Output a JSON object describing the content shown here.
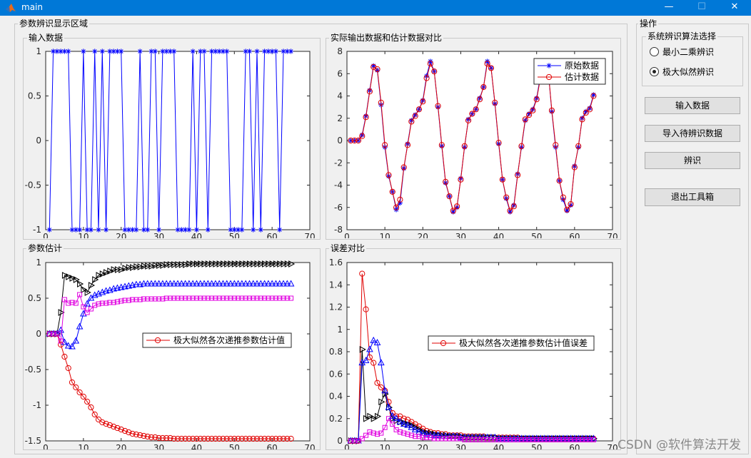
{
  "window": {
    "title": "main",
    "minimize": "—",
    "maximize": "☐",
    "close": "✕"
  },
  "panels": {
    "display_area": "参数辨识显示区域",
    "input": "输入数据",
    "compare": "实际输出数据和估计数据对比",
    "params": "参数估计",
    "error": "误差对比",
    "ops": "操作",
    "algo": "系统辨识算法选择"
  },
  "radios": {
    "lsq": "最小二乘辨识",
    "mle": "极大似然辨识",
    "selected": "mle"
  },
  "buttons": {
    "input_data": "输入数据",
    "import_data": "导入待辨识数据",
    "identify": "辨识",
    "exit": "退出工具箱"
  },
  "watermark": "CSDN @软件算法开发",
  "colors": {
    "blue": "#0000ff",
    "red": "#e00000",
    "black": "#000000",
    "magenta": "#e000e0",
    "accent": "#0078d7"
  },
  "chart_data": [
    {
      "id": "input",
      "type": "line",
      "marker": "star",
      "xlim": [
        0,
        70
      ],
      "ylim": [
        -1,
        1
      ],
      "xticks": [
        0,
        10,
        20,
        30,
        40,
        50,
        60,
        70
      ],
      "yticks": [
        -1,
        -0.5,
        0,
        0.5,
        1
      ],
      "series": [
        {
          "color": "#0000ff",
          "values": [
            -1,
            1,
            1,
            1,
            1,
            1,
            -1,
            -1,
            -1,
            1,
            -1,
            -1,
            1,
            -1,
            1,
            -1,
            1,
            1,
            1,
            1,
            -1,
            -1,
            -1,
            -1,
            1,
            -1,
            -1,
            1,
            1,
            -1,
            1,
            1,
            1,
            1,
            -1,
            -1,
            -1,
            -1,
            1,
            -1,
            1,
            1,
            -1,
            1,
            1,
            1,
            1,
            1,
            -1,
            -1,
            -1,
            -1,
            1,
            1,
            -1,
            1,
            -1,
            1,
            1,
            1,
            1,
            -1,
            1,
            1,
            1
          ]
        }
      ]
    },
    {
      "id": "compare",
      "type": "line",
      "xlim": [
        0,
        70
      ],
      "ylim": [
        -8,
        8
      ],
      "xticks": [
        0,
        10,
        20,
        30,
        40,
        50,
        60,
        70
      ],
      "yticks": [
        -8,
        -6,
        -4,
        -2,
        0,
        2,
        4,
        6,
        8
      ],
      "legend": [
        "原始数据",
        "估计数据"
      ],
      "legend_position": "top-right",
      "series": [
        {
          "name": "原始数据",
          "color": "#0000ff",
          "marker": "star",
          "values": [
            0,
            0,
            0,
            0.5,
            2.2,
            4.5,
            6.7,
            6.3,
            3.2,
            -0.6,
            -3.2,
            -4.6,
            -6.2,
            -5.6,
            -2.5,
            -0.3,
            1.8,
            2.3,
            2.8,
            3.6,
            5.8,
            7.1,
            6.2,
            3.0,
            -0.5,
            -3.8,
            -5.0,
            -6.4,
            -6.0,
            -3.4,
            -0.6,
            1.9,
            2.4,
            2.8,
            3.8,
            4.8,
            7.1,
            6.5,
            3.3,
            -0.3,
            -3.5,
            -5.2,
            -6.4,
            -5.8,
            -3.0,
            -0.6,
            1.8,
            2.4,
            2.8,
            3.8,
            5.8,
            6.7,
            6.5,
            2.6,
            -0.6,
            -3.6,
            -5.3,
            -6.3,
            -5.8,
            -2.3,
            -0.6,
            2.0,
            2.6,
            2.9,
            4.1
          ]
        },
        {
          "name": "估计数据",
          "color": "#e00000",
          "marker": "circle",
          "values": [
            0,
            0,
            0,
            0.4,
            2.1,
            4.4,
            6.6,
            6.4,
            3.4,
            -0.4,
            -3.1,
            -4.6,
            -6.0,
            -5.3,
            -2.4,
            -0.4,
            1.7,
            2.2,
            2.8,
            3.5,
            5.6,
            6.9,
            6.2,
            3.1,
            -0.4,
            -3.7,
            -5.0,
            -6.3,
            -5.9,
            -3.5,
            -0.5,
            1.8,
            2.4,
            2.8,
            3.7,
            4.8,
            6.9,
            6.5,
            3.4,
            -0.2,
            -3.5,
            -5.1,
            -6.3,
            -5.9,
            -3.1,
            -0.5,
            1.9,
            2.3,
            2.7,
            3.7,
            5.6,
            6.6,
            6.5,
            2.7,
            -0.4,
            -3.6,
            -5.1,
            -6.2,
            -5.7,
            -2.4,
            -0.5,
            1.9,
            2.5,
            2.8,
            4.0
          ]
        }
      ]
    },
    {
      "id": "params",
      "type": "line",
      "xlim": [
        0,
        70
      ],
      "ylim": [
        -1.5,
        1
      ],
      "xticks": [
        0,
        10,
        20,
        30,
        40,
        50,
        60,
        70
      ],
      "yticks": [
        -1.5,
        -1,
        -0.5,
        0,
        0.5,
        1
      ],
      "legend": [
        "极大似然各次递推参数估计值"
      ],
      "legend_position": "right",
      "series": [
        {
          "name": "极大似然各次递推参数估计值",
          "color": "#e00000",
          "marker": "circle",
          "values": [
            0,
            0,
            0,
            -0.15,
            -0.32,
            -0.48,
            -0.68,
            -0.75,
            -0.82,
            -0.88,
            -0.95,
            -1.03,
            -1.13,
            -1.2,
            -1.24,
            -1.26,
            -1.28,
            -1.3,
            -1.32,
            -1.34,
            -1.36,
            -1.38,
            -1.4,
            -1.41,
            -1.42,
            -1.43,
            -1.44,
            -1.45,
            -1.45,
            -1.46,
            -1.46,
            -1.46,
            -1.46,
            -1.47,
            -1.47,
            -1.47,
            -1.47,
            -1.47,
            -1.47,
            -1.47,
            -1.47,
            -1.47,
            -1.47,
            -1.47,
            -1.47,
            -1.47,
            -1.47,
            -1.47,
            -1.47,
            -1.47,
            -1.47,
            -1.47,
            -1.47,
            -1.47,
            -1.47,
            -1.47,
            -1.47,
            -1.47,
            -1.47,
            -1.47,
            -1.47,
            -1.47,
            -1.47,
            -1.47,
            -1.47
          ]
        },
        {
          "color": "#000000",
          "marker": "triangle-right",
          "values": [
            0,
            0,
            0,
            0.3,
            0.82,
            0.8,
            0.78,
            0.76,
            0.7,
            0.62,
            0.58,
            0.68,
            0.76,
            0.82,
            0.84,
            0.86,
            0.88,
            0.9,
            0.9,
            0.9,
            0.92,
            0.93,
            0.93,
            0.94,
            0.94,
            0.95,
            0.95,
            0.95,
            0.96,
            0.96,
            0.96,
            0.97,
            0.97,
            0.97,
            0.97,
            0.97,
            0.97,
            0.98,
            0.98,
            0.98,
            0.98,
            0.98,
            0.98,
            0.98,
            0.98,
            0.98,
            0.98,
            0.98,
            0.98,
            0.98,
            0.98,
            0.98,
            0.98,
            0.98,
            0.98,
            0.98,
            0.98,
            0.98,
            0.98,
            0.98,
            0.98,
            0.98,
            0.98,
            0.98,
            0.98
          ]
        },
        {
          "color": "#0000ff",
          "marker": "triangle-up",
          "values": [
            0,
            0,
            0,
            0.05,
            -0.12,
            -0.17,
            -0.18,
            -0.1,
            0.1,
            0.28,
            0.42,
            0.5,
            0.54,
            0.56,
            0.58,
            0.6,
            0.61,
            0.63,
            0.64,
            0.65,
            0.66,
            0.67,
            0.68,
            0.69,
            0.69,
            0.7,
            0.7,
            0.7,
            0.7,
            0.7,
            0.7,
            0.7,
            0.7,
            0.7,
            0.7,
            0.7,
            0.7,
            0.7,
            0.7,
            0.7,
            0.7,
            0.7,
            0.7,
            0.7,
            0.7,
            0.7,
            0.7,
            0.7,
            0.7,
            0.7,
            0.7,
            0.7,
            0.7,
            0.7,
            0.7,
            0.7,
            0.7,
            0.7,
            0.7,
            0.7,
            0.7,
            0.7,
            0.7,
            0.7,
            0.7
          ]
        },
        {
          "color": "#e000e0",
          "marker": "square",
          "values": [
            0,
            0,
            0,
            -0.1,
            0.48,
            0.43,
            0.44,
            0.43,
            0.55,
            0.38,
            0.3,
            0.35,
            0.4,
            0.42,
            0.43,
            0.43,
            0.44,
            0.44,
            0.45,
            0.46,
            0.47,
            0.47,
            0.48,
            0.48,
            0.48,
            0.49,
            0.49,
            0.49,
            0.49,
            0.49,
            0.49,
            0.5,
            0.5,
            0.5,
            0.5,
            0.5,
            0.5,
            0.5,
            0.5,
            0.5,
            0.5,
            0.5,
            0.5,
            0.5,
            0.5,
            0.5,
            0.5,
            0.5,
            0.5,
            0.5,
            0.5,
            0.5,
            0.5,
            0.5,
            0.5,
            0.5,
            0.5,
            0.5,
            0.5,
            0.5,
            0.5,
            0.5,
            0.5,
            0.5,
            0.5
          ]
        }
      ]
    },
    {
      "id": "error",
      "type": "line",
      "xlim": [
        0,
        70
      ],
      "ylim": [
        0,
        1.6
      ],
      "xticks": [
        0,
        10,
        20,
        30,
        40,
        50,
        60,
        70
      ],
      "yticks": [
        0,
        0.2,
        0.4,
        0.6,
        0.8,
        1,
        1.2,
        1.4,
        1.6
      ],
      "legend": [
        "极大似然各次递推参数估计值误差"
      ],
      "legend_position": "right",
      "series": [
        {
          "name": "极大似然各次递推参数估计值误差",
          "color": "#e00000",
          "marker": "circle",
          "values": [
            0,
            0,
            0,
            1.5,
            1.18,
            0.75,
            0.7,
            0.52,
            0.48,
            0.45,
            0.35,
            0.25,
            0.22,
            0.22,
            0.2,
            0.19,
            0.17,
            0.15,
            0.13,
            0.11,
            0.09,
            0.08,
            0.07,
            0.07,
            0.06,
            0.06,
            0.05,
            0.05,
            0.05,
            0.05,
            0.04,
            0.04,
            0.04,
            0.04,
            0.04,
            0.04,
            0.03,
            0.03,
            0.03,
            0.03,
            0.03,
            0.03,
            0.03,
            0.03,
            0.03,
            0.02,
            0.02,
            0.02,
            0.02,
            0.02,
            0.02,
            0.02,
            0.02,
            0.02,
            0.02,
            0.02,
            0.02,
            0.02,
            0.02,
            0.02,
            0.02,
            0.02,
            0.02,
            0.02,
            0.02
          ]
        },
        {
          "color": "#000000",
          "marker": "triangle-right",
          "values": [
            0,
            0,
            0,
            0.82,
            0.2,
            0.22,
            0.2,
            0.22,
            0.35,
            0.42,
            0.3,
            0.2,
            0.18,
            0.17,
            0.16,
            0.15,
            0.14,
            0.12,
            0.1,
            0.08,
            0.07,
            0.07,
            0.06,
            0.05,
            0.05,
            0.05,
            0.04,
            0.04,
            0.04,
            0.04,
            0.03,
            0.03,
            0.03,
            0.03,
            0.03,
            0.03,
            0.03,
            0.03,
            0.03,
            0.02,
            0.02,
            0.02,
            0.02,
            0.02,
            0.02,
            0.02,
            0.02,
            0.02,
            0.02,
            0.02,
            0.02,
            0.02,
            0.02,
            0.02,
            0.02,
            0.02,
            0.02,
            0.02,
            0.02,
            0.02,
            0.02,
            0.02,
            0.02,
            0.02,
            0.02
          ]
        },
        {
          "color": "#0000ff",
          "marker": "triangle-up",
          "values": [
            0,
            0,
            0,
            0.7,
            0.72,
            0.82,
            0.9,
            0.88,
            0.7,
            0.45,
            0.3,
            0.22,
            0.2,
            0.17,
            0.15,
            0.14,
            0.12,
            0.1,
            0.08,
            0.07,
            0.06,
            0.05,
            0.05,
            0.05,
            0.04,
            0.04,
            0.04,
            0.04,
            0.04,
            0.03,
            0.03,
            0.03,
            0.03,
            0.03,
            0.03,
            0.03,
            0.03,
            0.03,
            0.03,
            0.02,
            0.02,
            0.02,
            0.02,
            0.02,
            0.02,
            0.02,
            0.02,
            0.02,
            0.02,
            0.02,
            0.02,
            0.02,
            0.02,
            0.02,
            0.02,
            0.02,
            0.02,
            0.02,
            0.02,
            0.02,
            0.02,
            0.02,
            0.02,
            0.02,
            0.02
          ]
        },
        {
          "color": "#e000e0",
          "marker": "square",
          "values": [
            0,
            0,
            0,
            0.02,
            0.05,
            0.08,
            0.07,
            0.06,
            0.07,
            0.12,
            0.2,
            0.15,
            0.1,
            0.08,
            0.07,
            0.06,
            0.05,
            0.04,
            0.04,
            0.03,
            0.03,
            0.03,
            0.02,
            0.02,
            0.02,
            0.02,
            0.02,
            0.02,
            0.02,
            0.02,
            0.01,
            0.01,
            0.01,
            0.01,
            0.01,
            0.01,
            0.01,
            0.01,
            0.01,
            0.01,
            0.01,
            0.01,
            0.01,
            0.01,
            0.01,
            0.01,
            0.01,
            0.01,
            0.01,
            0.01,
            0.01,
            0.01,
            0.01,
            0.01,
            0.01,
            0.01,
            0.01,
            0.01,
            0.01,
            0.01,
            0.01,
            0.01,
            0.01,
            0.01,
            0.01
          ]
        }
      ]
    }
  ]
}
